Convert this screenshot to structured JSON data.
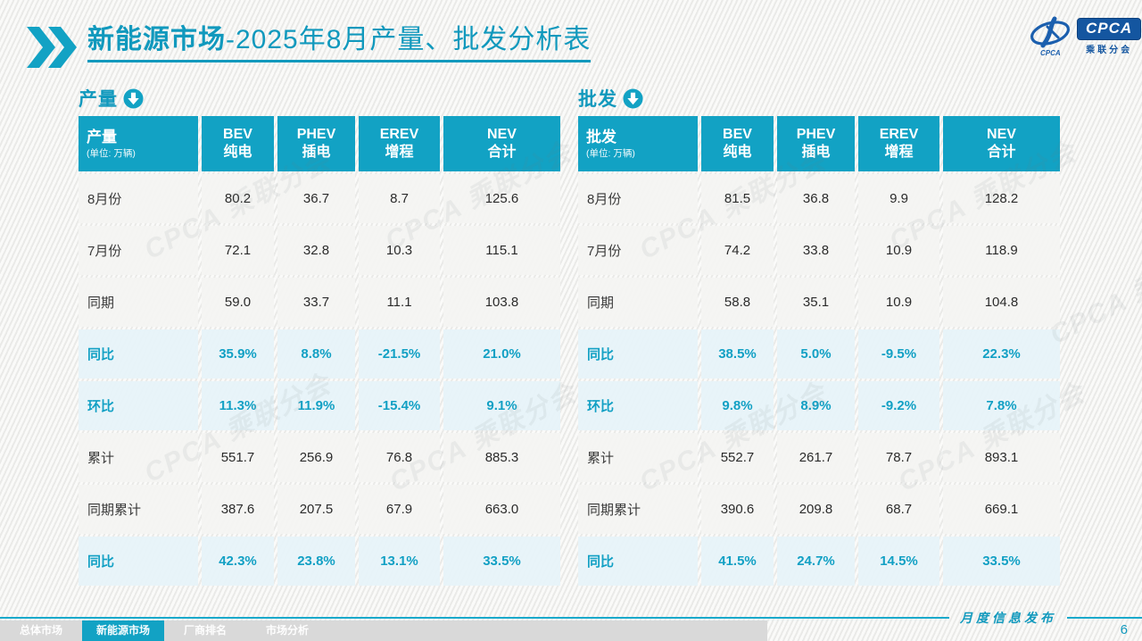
{
  "accent": "#12a2c4",
  "header": {
    "title_bold": "新能源市场",
    "title_rest": "-2025年8月产量、批发分析表"
  },
  "logo": {
    "acronym": "CPCA",
    "emblem_small_text": "CPCA",
    "org": "乘联分会"
  },
  "columns": [
    {
      "en": "BEV",
      "zh": "纯电"
    },
    {
      "en": "PHEV",
      "zh": "插电"
    },
    {
      "en": "EREV",
      "zh": "增程"
    },
    {
      "en": "NEV",
      "zh": "合计"
    }
  ],
  "tables": [
    {
      "section_label": "产量",
      "corner_title": "产量",
      "corner_unit": "(单位: 万辆)",
      "rows": [
        {
          "label": "8月份",
          "type": "data",
          "values": [
            "80.2",
            "36.7",
            "8.7",
            "125.6"
          ]
        },
        {
          "label": "7月份",
          "type": "data",
          "values": [
            "72.1",
            "32.8",
            "10.3",
            "115.1"
          ]
        },
        {
          "label": "同期",
          "type": "data",
          "values": [
            "59.0",
            "33.7",
            "11.1",
            "103.8"
          ]
        },
        {
          "label": "同比",
          "type": "pct",
          "values": [
            "35.9%",
            "8.8%",
            "-21.5%",
            "21.0%"
          ]
        },
        {
          "label": "环比",
          "type": "pct",
          "values": [
            "11.3%",
            "11.9%",
            "-15.4%",
            "9.1%"
          ]
        },
        {
          "label": "累计",
          "type": "data",
          "values": [
            "551.7",
            "256.9",
            "76.8",
            "885.3"
          ]
        },
        {
          "label": "同期累计",
          "type": "data",
          "values": [
            "387.6",
            "207.5",
            "67.9",
            "663.0"
          ]
        },
        {
          "label": "同比",
          "type": "pct",
          "values": [
            "42.3%",
            "23.8%",
            "13.1%",
            "33.5%"
          ]
        }
      ]
    },
    {
      "section_label": "批发",
      "corner_title": "批发",
      "corner_unit": "(单位: 万辆)",
      "rows": [
        {
          "label": "8月份",
          "type": "data",
          "values": [
            "81.5",
            "36.8",
            "9.9",
            "128.2"
          ]
        },
        {
          "label": "7月份",
          "type": "data",
          "values": [
            "74.2",
            "33.8",
            "10.9",
            "118.9"
          ]
        },
        {
          "label": "同期",
          "type": "data",
          "values": [
            "58.8",
            "35.1",
            "10.9",
            "104.8"
          ]
        },
        {
          "label": "同比",
          "type": "pct",
          "values": [
            "38.5%",
            "5.0%",
            "-9.5%",
            "22.3%"
          ]
        },
        {
          "label": "环比",
          "type": "pct",
          "values": [
            "9.8%",
            "8.9%",
            "-9.2%",
            "7.8%"
          ]
        },
        {
          "label": "累计",
          "type": "data",
          "values": [
            "552.7",
            "261.7",
            "78.7",
            "893.1"
          ]
        },
        {
          "label": "同期累计",
          "type": "data",
          "values": [
            "390.6",
            "209.8",
            "68.7",
            "669.1"
          ]
        },
        {
          "label": "同比",
          "type": "pct",
          "values": [
            "41.5%",
            "24.7%",
            "14.5%",
            "33.5%"
          ]
        }
      ]
    }
  ],
  "footer": {
    "tabs": [
      {
        "label": "总体市场",
        "active": false
      },
      {
        "label": "新能源市场",
        "active": true
      },
      {
        "label": "厂商排名",
        "active": false
      },
      {
        "label": "市场分析",
        "active": false
      }
    ],
    "publication": "月度信息发布",
    "page": "6"
  },
  "watermark_text": "CPCA 乘联分会"
}
